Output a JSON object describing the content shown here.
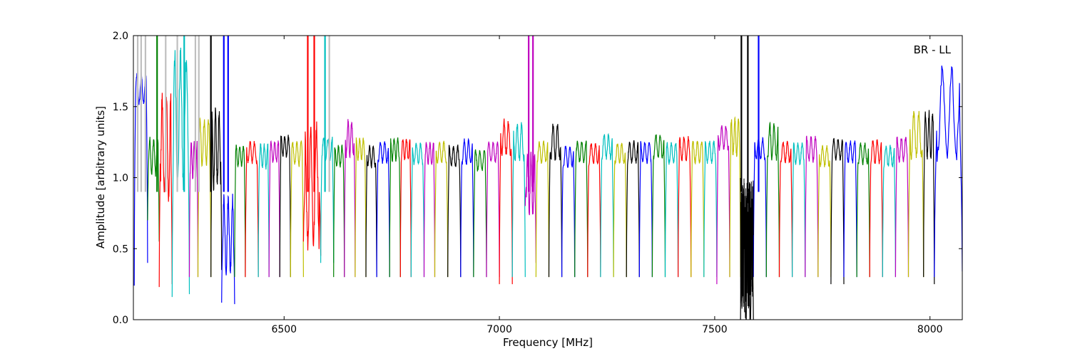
{
  "chart_data": {
    "type": "line",
    "title": "",
    "annotation": "BR - LL",
    "xlabel": "Frequency [MHz]",
    "ylabel": "Amplitude [arbitrary units]",
    "xlim": [
      6150,
      8075
    ],
    "ylim": [
      0.0,
      2.0
    ],
    "xticks": [
      6500,
      7000,
      7500,
      8000
    ],
    "xtick_labels": [
      "6500",
      "7000",
      "7500",
      "8000"
    ],
    "yticks": [
      0.0,
      0.5,
      1.0,
      1.5,
      2.0
    ],
    "ytick_labels": [
      "0.0",
      "0.5",
      "1.0",
      "1.5",
      "2.0"
    ],
    "grid": false,
    "legend": "none",
    "colors": [
      "#0000ff",
      "#008000",
      "#ff0000",
      "#00bfbf",
      "#bf00bf",
      "#bfbf00",
      "#000000"
    ],
    "background_trace_color": "#bfbfbf",
    "sub_bands": [
      {
        "x_start": 6152,
        "x_end": 6183,
        "color": "#0000ff",
        "edge_low": 0.24,
        "edge_high": 0.4,
        "level": 1.62,
        "ripple": 0.1
      },
      {
        "x_start": 6183,
        "x_end": 6210,
        "color": "#008000",
        "edge_low": 0.7,
        "edge_high": 0.55,
        "level": 1.15,
        "ripple": 0.12
      },
      {
        "x_start": 6210,
        "x_end": 6240,
        "color": "#ff0000",
        "edge_low": 0.23,
        "edge_high": 0.25,
        "level": 1.2,
        "ripple": 0.35
      },
      {
        "x_start": 6240,
        "x_end": 6280,
        "color": "#00bfbf",
        "edge_low": 0.16,
        "edge_high": 0.18,
        "level": 1.4,
        "ripple": 0.45
      },
      {
        "x_start": 6280,
        "x_end": 6300,
        "color": "#bf00bf",
        "edge_low": 0.3,
        "edge_high": 0.3,
        "level": 1.12,
        "ripple": 0.12
      },
      {
        "x_start": 6300,
        "x_end": 6330,
        "color": "#bfbf00",
        "edge_low": 0.3,
        "edge_high": 0.3,
        "level": 1.25,
        "ripple": 0.15
      },
      {
        "x_start": 6330,
        "x_end": 6355,
        "color": "#000000",
        "edge_low": 0.3,
        "edge_high": 0.35,
        "level": 1.2,
        "ripple": 0.25
      },
      {
        "x_start": 6355,
        "x_end": 6385,
        "color": "#0000ff",
        "edge_low": 0.12,
        "edge_high": 0.11,
        "level": 0.6,
        "ripple": 0.25
      },
      {
        "x_start": 6385,
        "x_end": 6410,
        "color": "#008000",
        "edge_low": 0.3,
        "edge_high": 0.3,
        "level": 1.15,
        "ripple": 0.07
      },
      {
        "x_start": 6410,
        "x_end": 6440,
        "color": "#ff0000",
        "edge_low": 0.3,
        "edge_high": 0.3,
        "level": 1.18,
        "ripple": 0.07
      },
      {
        "x_start": 6440,
        "x_end": 6465,
        "color": "#00bfbf",
        "edge_low": 0.3,
        "edge_high": 0.3,
        "level": 1.15,
        "ripple": 0.08
      },
      {
        "x_start": 6465,
        "x_end": 6490,
        "color": "#bf00bf",
        "edge_low": 0.3,
        "edge_high": 0.3,
        "level": 1.18,
        "ripple": 0.07
      },
      {
        "x_start": 6490,
        "x_end": 6515,
        "color": "#000000",
        "edge_low": 0.3,
        "edge_high": 0.3,
        "level": 1.22,
        "ripple": 0.07
      },
      {
        "x_start": 6515,
        "x_end": 6545,
        "color": "#bfbf00",
        "edge_low": 0.3,
        "edge_high": 0.3,
        "level": 1.17,
        "ripple": 0.08
      },
      {
        "x_start": 6545,
        "x_end": 6585,
        "color": "#ff0000",
        "edge_low": 0.55,
        "edge_high": 0.45,
        "level": 0.95,
        "ripple": 0.4
      },
      {
        "x_start": 6585,
        "x_end": 6615,
        "color": "#00bfbf",
        "edge_low": 0.4,
        "edge_high": 0.4,
        "level": 1.2,
        "ripple": 0.08
      },
      {
        "x_start": 6615,
        "x_end": 6640,
        "color": "#008000",
        "edge_low": 0.3,
        "edge_high": 0.3,
        "level": 1.15,
        "ripple": 0.07
      },
      {
        "x_start": 6640,
        "x_end": 6665,
        "color": "#bf00bf",
        "edge_low": 0.3,
        "edge_high": 0.3,
        "level": 1.28,
        "ripple": 0.12
      },
      {
        "x_start": 6665,
        "x_end": 6690,
        "color": "#bfbf00",
        "edge_low": 0.3,
        "edge_high": 0.3,
        "level": 1.2,
        "ripple": 0.07
      },
      {
        "x_start": 6690,
        "x_end": 6715,
        "color": "#000000",
        "edge_low": 0.3,
        "edge_high": 0.3,
        "level": 1.15,
        "ripple": 0.07
      },
      {
        "x_start": 6715,
        "x_end": 6745,
        "color": "#0000ff",
        "edge_low": 0.3,
        "edge_high": 0.3,
        "level": 1.18,
        "ripple": 0.07
      },
      {
        "x_start": 6745,
        "x_end": 6770,
        "color": "#008000",
        "edge_low": 0.3,
        "edge_high": 0.3,
        "level": 1.2,
        "ripple": 0.08
      },
      {
        "x_start": 6770,
        "x_end": 6795,
        "color": "#ff0000",
        "edge_low": 0.3,
        "edge_high": 0.3,
        "level": 1.2,
        "ripple": 0.07
      },
      {
        "x_start": 6795,
        "x_end": 6825,
        "color": "#00bfbf",
        "edge_low": 0.3,
        "edge_high": 0.3,
        "level": 1.17,
        "ripple": 0.07
      },
      {
        "x_start": 6825,
        "x_end": 6850,
        "color": "#bf00bf",
        "edge_low": 0.3,
        "edge_high": 0.3,
        "level": 1.17,
        "ripple": 0.07
      },
      {
        "x_start": 6850,
        "x_end": 6880,
        "color": "#bfbf00",
        "edge_low": 0.3,
        "edge_high": 0.3,
        "level": 1.18,
        "ripple": 0.07
      },
      {
        "x_start": 6880,
        "x_end": 6910,
        "color": "#000000",
        "edge_low": 0.3,
        "edge_high": 0.3,
        "level": 1.15,
        "ripple": 0.07
      },
      {
        "x_start": 6910,
        "x_end": 6940,
        "color": "#0000ff",
        "edge_low": 0.3,
        "edge_high": 0.3,
        "level": 1.18,
        "ripple": 0.08
      },
      {
        "x_start": 6940,
        "x_end": 6970,
        "color": "#008000",
        "edge_low": 0.3,
        "edge_high": 0.3,
        "level": 1.12,
        "ripple": 0.07
      },
      {
        "x_start": 6970,
        "x_end": 7000,
        "color": "#bf00bf",
        "edge_low": 0.3,
        "edge_high": 0.3,
        "level": 1.18,
        "ripple": 0.07
      },
      {
        "x_start": 7000,
        "x_end": 7030,
        "color": "#ff0000",
        "edge_low": 0.25,
        "edge_high": 0.25,
        "level": 1.28,
        "ripple": 0.12
      },
      {
        "x_start": 7030,
        "x_end": 7060,
        "color": "#00bfbf",
        "edge_low": 0.3,
        "edge_high": 0.3,
        "level": 1.25,
        "ripple": 0.12
      },
      {
        "x_start": 7060,
        "x_end": 7085,
        "color": "#bf00bf",
        "edge_low": 0.8,
        "edge_high": 0.4,
        "level": 0.95,
        "ripple": 0.2
      },
      {
        "x_start": 7085,
        "x_end": 7115,
        "color": "#bfbf00",
        "edge_low": 0.3,
        "edge_high": 0.3,
        "level": 1.18,
        "ripple": 0.07
      },
      {
        "x_start": 7115,
        "x_end": 7145,
        "color": "#000000",
        "edge_low": 0.3,
        "edge_high": 0.3,
        "level": 1.25,
        "ripple": 0.12
      },
      {
        "x_start": 7145,
        "x_end": 7175,
        "color": "#0000ff",
        "edge_low": 0.3,
        "edge_high": 0.3,
        "level": 1.15,
        "ripple": 0.07
      },
      {
        "x_start": 7175,
        "x_end": 7205,
        "color": "#008000",
        "edge_low": 0.3,
        "edge_high": 0.3,
        "level": 1.18,
        "ripple": 0.07
      },
      {
        "x_start": 7205,
        "x_end": 7235,
        "color": "#ff0000",
        "edge_low": 0.3,
        "edge_high": 0.3,
        "level": 1.17,
        "ripple": 0.07
      },
      {
        "x_start": 7235,
        "x_end": 7265,
        "color": "#00bfbf",
        "edge_low": 0.3,
        "edge_high": 0.3,
        "level": 1.22,
        "ripple": 0.08
      },
      {
        "x_start": 7265,
        "x_end": 7295,
        "color": "#bfbf00",
        "edge_low": 0.3,
        "edge_high": 0.3,
        "level": 1.17,
        "ripple": 0.07
      },
      {
        "x_start": 7295,
        "x_end": 7325,
        "color": "#000000",
        "edge_low": 0.3,
        "edge_high": 0.3,
        "level": 1.18,
        "ripple": 0.07
      },
      {
        "x_start": 7325,
        "x_end": 7355,
        "color": "#0000ff",
        "edge_low": 0.3,
        "edge_high": 0.3,
        "level": 1.18,
        "ripple": 0.07
      },
      {
        "x_start": 7355,
        "x_end": 7385,
        "color": "#008000",
        "edge_low": 0.3,
        "edge_high": 0.3,
        "level": 1.22,
        "ripple": 0.08
      },
      {
        "x_start": 7385,
        "x_end": 7415,
        "color": "#00bfbf",
        "edge_low": 0.3,
        "edge_high": 0.3,
        "level": 1.17,
        "ripple": 0.07
      },
      {
        "x_start": 7415,
        "x_end": 7445,
        "color": "#ff0000",
        "edge_low": 0.3,
        "edge_high": 0.3,
        "level": 1.2,
        "ripple": 0.08
      },
      {
        "x_start": 7445,
        "x_end": 7475,
        "color": "#bfbf00",
        "edge_low": 0.3,
        "edge_high": 0.3,
        "level": 1.18,
        "ripple": 0.07
      },
      {
        "x_start": 7475,
        "x_end": 7505,
        "color": "#00bfbf",
        "edge_low": 0.3,
        "edge_high": 0.3,
        "level": 1.18,
        "ripple": 0.07
      },
      {
        "x_start": 7505,
        "x_end": 7535,
        "color": "#bf00bf",
        "edge_low": 0.25,
        "edge_high": 0.3,
        "level": 1.28,
        "ripple": 0.08
      },
      {
        "x_start": 7535,
        "x_end": 7560,
        "color": "#bfbf00",
        "edge_low": 0.3,
        "edge_high": 0.3,
        "level": 1.28,
        "ripple": 0.12
      },
      {
        "x_start": 7560,
        "x_end": 7590,
        "color": "#000000",
        "edge_low": 0.0,
        "edge_high": 0.0,
        "level": 0.45,
        "ripple": 0.45
      },
      {
        "x_start": 7590,
        "x_end": 7620,
        "color": "#0000ff",
        "edge_low": 0.3,
        "edge_high": 0.3,
        "level": 1.2,
        "ripple": 0.07
      },
      {
        "x_start": 7620,
        "x_end": 7650,
        "color": "#008000",
        "edge_low": 0.3,
        "edge_high": 0.3,
        "level": 1.25,
        "ripple": 0.12
      },
      {
        "x_start": 7650,
        "x_end": 7680,
        "color": "#ff0000",
        "edge_low": 0.3,
        "edge_high": 0.3,
        "level": 1.18,
        "ripple": 0.07
      },
      {
        "x_start": 7680,
        "x_end": 7710,
        "color": "#00bfbf",
        "edge_low": 0.3,
        "edge_high": 0.3,
        "level": 1.17,
        "ripple": 0.07
      },
      {
        "x_start": 7710,
        "x_end": 7740,
        "color": "#bf00bf",
        "edge_low": 0.3,
        "edge_high": 0.3,
        "level": 1.2,
        "ripple": 0.08
      },
      {
        "x_start": 7740,
        "x_end": 7770,
        "color": "#bfbf00",
        "edge_low": 0.3,
        "edge_high": 0.3,
        "level": 1.15,
        "ripple": 0.07
      },
      {
        "x_start": 7770,
        "x_end": 7800,
        "color": "#000000",
        "edge_low": 0.25,
        "edge_high": 0.25,
        "level": 1.2,
        "ripple": 0.07
      },
      {
        "x_start": 7800,
        "x_end": 7830,
        "color": "#0000ff",
        "edge_low": 0.3,
        "edge_high": 0.3,
        "level": 1.18,
        "ripple": 0.07
      },
      {
        "x_start": 7830,
        "x_end": 7860,
        "color": "#008000",
        "edge_low": 0.3,
        "edge_high": 0.3,
        "level": 1.17,
        "ripple": 0.07
      },
      {
        "x_start": 7860,
        "x_end": 7890,
        "color": "#ff0000",
        "edge_low": 0.3,
        "edge_high": 0.3,
        "level": 1.18,
        "ripple": 0.08
      },
      {
        "x_start": 7890,
        "x_end": 7920,
        "color": "#00bfbf",
        "edge_low": 0.3,
        "edge_high": 0.3,
        "level": 1.15,
        "ripple": 0.07
      },
      {
        "x_start": 7920,
        "x_end": 7950,
        "color": "#bf00bf",
        "edge_low": 0.3,
        "edge_high": 0.3,
        "level": 1.2,
        "ripple": 0.08
      },
      {
        "x_start": 7950,
        "x_end": 7985,
        "color": "#bfbf00",
        "edge_low": 0.3,
        "edge_high": 0.3,
        "level": 1.3,
        "ripple": 0.15
      },
      {
        "x_start": 7985,
        "x_end": 8010,
        "color": "#000000",
        "edge_low": 0.3,
        "edge_high": 0.25,
        "level": 1.3,
        "ripple": 0.15
      },
      {
        "x_start": 8010,
        "x_end": 8075,
        "color": "#0000ff",
        "edge_low": 0.3,
        "edge_high": 0.34,
        "level": 1.45,
        "ripple": 0.3
      }
    ],
    "spikes": [
      {
        "x": 6160,
        "color": "#bfbfbf"
      },
      {
        "x": 6168,
        "color": "#bfbfbf"
      },
      {
        "x": 6178,
        "color": "#bfbfbf"
      },
      {
        "x": 6205,
        "color": "#008000"
      },
      {
        "x": 6225,
        "color": "#bfbfbf"
      },
      {
        "x": 6252,
        "color": "#bfbfbf"
      },
      {
        "x": 6268,
        "color": "#00bfbf"
      },
      {
        "x": 6294,
        "color": "#bfbfbf"
      },
      {
        "x": 6302,
        "color": "#bfbfbf"
      },
      {
        "x": 6330,
        "color": "#000000"
      },
      {
        "x": 6360,
        "color": "#0000ff"
      },
      {
        "x": 6370,
        "color": "#0000ff"
      },
      {
        "x": 6555,
        "color": "#ff0000"
      },
      {
        "x": 6570,
        "color": "#ff0000"
      },
      {
        "x": 6595,
        "color": "#00bfbf"
      },
      {
        "x": 6605,
        "color": "#bfbfbf"
      },
      {
        "x": 7068,
        "color": "#bf00bf"
      },
      {
        "x": 7078,
        "color": "#bf00bf"
      },
      {
        "x": 7562,
        "color": "#000000"
      },
      {
        "x": 7577,
        "color": "#000000"
      },
      {
        "x": 7602,
        "color": "#0000ff"
      }
    ]
  }
}
